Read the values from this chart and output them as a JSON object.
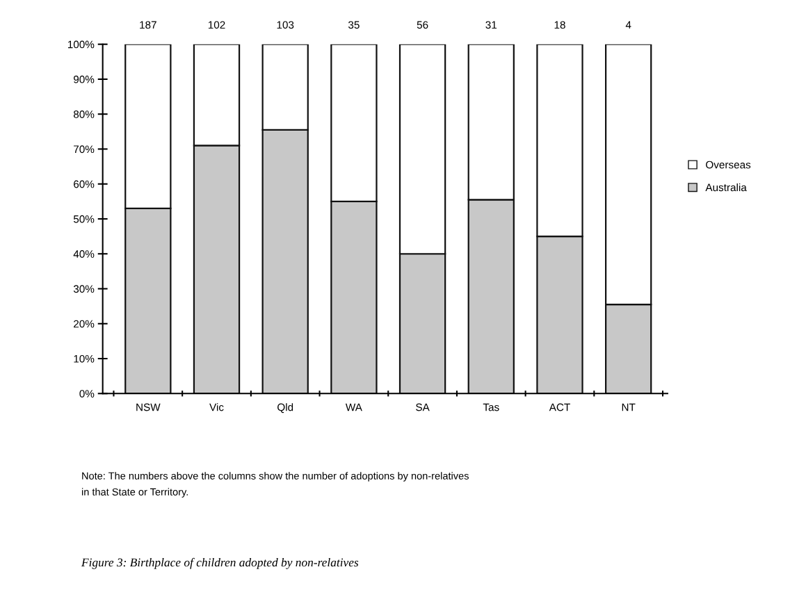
{
  "chart_data": {
    "type": "bar",
    "stacked": true,
    "title": "Figure 3: Birthplace of children adopted by non-relatives",
    "categories": [
      "NSW",
      "Vic",
      "Qld",
      "WA",
      "SA",
      "Tas",
      "ACT",
      "NT"
    ],
    "series": [
      {
        "name": "Australia",
        "color": "#c8c8c8",
        "values": [
          53,
          71,
          75.5,
          55,
          40,
          55.5,
          45,
          25.5
        ]
      },
      {
        "name": "Overseas",
        "color": "#ffffff",
        "values": [
          47,
          29,
          24.5,
          45,
          60,
          44.5,
          55,
          74.5
        ]
      }
    ],
    "ylim": [
      0,
      100
    ],
    "yticks": [
      {
        "value": 0,
        "label": "0%"
      },
      {
        "value": 10,
        "label": "10%"
      },
      {
        "value": 20,
        "label": "20%"
      },
      {
        "value": 30,
        "label": "30%"
      },
      {
        "value": 40,
        "label": "40%"
      },
      {
        "value": 50,
        "label": "50%"
      },
      {
        "value": 60,
        "label": "60%"
      },
      {
        "value": 70,
        "label": "70%"
      },
      {
        "value": 80,
        "label": "80%"
      },
      {
        "value": 90,
        "label": "90%"
      },
      {
        "value": 100,
        "label": "100%"
      }
    ],
    "annotations": [
      {
        "text": "187",
        "x": "NSW",
        "y": 100
      },
      {
        "text": "102",
        "x": "Vic",
        "y": 100
      },
      {
        "text": "103",
        "x": "Qld",
        "y": 100
      },
      {
        "text": "35",
        "x": "WA",
        "y": 100
      },
      {
        "text": "56",
        "x": "SA",
        "y": 100
      },
      {
        "text": "31",
        "x": "Tas",
        "y": 100
      },
      {
        "text": "18",
        "x": "ACT",
        "y": 100
      },
      {
        "text": "4",
        "x": "NT",
        "y": 100
      },
      "Note: The numbers above the columns show the number of adoptions by non-relatives\nin that State or Territory."
    ],
    "legend": "right",
    "grid": false
  }
}
